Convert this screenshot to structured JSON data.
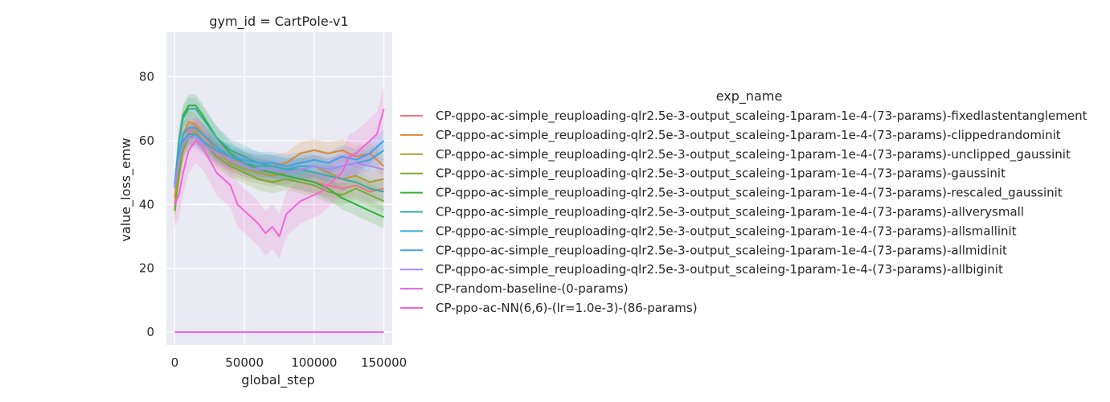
{
  "chart_data": {
    "type": "line",
    "title": "gym_id = CartPole-v1",
    "xlabel": "global_step",
    "ylabel": "value_loss_emw",
    "xlim": [
      -6000,
      156000
    ],
    "ylim": [
      -4,
      94
    ],
    "xticks": [
      0,
      50000,
      100000,
      150000
    ],
    "yticks": [
      0,
      20,
      40,
      60,
      80
    ],
    "grid": true,
    "background": "#eaeaf2",
    "legend_title": "exp_name",
    "legend_position": "right",
    "series": [
      {
        "name": "CP-qppo-ac-simple_reuploading-qlr2.5e-3-output_scaleing-1param-1e-4-(73-params)-fixedlastentanglement",
        "color": "#f77189",
        "x": [
          0,
          3000,
          6000,
          10000,
          15000,
          20000,
          30000,
          40000,
          50000,
          60000,
          70000,
          80000,
          90000,
          100000,
          110000,
          120000,
          130000,
          140000,
          150000
        ],
        "y": [
          40,
          50,
          58,
          63,
          64,
          62,
          57,
          54,
          52,
          51,
          50,
          49,
          48,
          47,
          46,
          45,
          46,
          44,
          45
        ]
      },
      {
        "name": "CP-qppo-ac-simple_reuploading-qlr2.5e-3-output_scaleing-1param-1e-4-(73-params)-clippedrandominit",
        "color": "#dc8932",
        "x": [
          0,
          3000,
          6000,
          10000,
          15000,
          20000,
          30000,
          40000,
          50000,
          60000,
          70000,
          80000,
          90000,
          100000,
          110000,
          120000,
          130000,
          140000,
          150000
        ],
        "y": [
          42,
          55,
          62,
          66,
          65,
          62,
          57,
          54,
          53,
          52,
          52,
          53,
          56,
          57,
          56,
          57,
          55,
          56,
          52
        ]
      },
      {
        "name": "CP-qppo-ac-simple_reuploading-qlr2.5e-3-output_scaleing-1param-1e-4-(73-params)-unclipped_gaussinit",
        "color": "#ae9d31",
        "x": [
          0,
          3000,
          6000,
          10000,
          15000,
          20000,
          30000,
          40000,
          50000,
          60000,
          70000,
          80000,
          90000,
          100000,
          110000,
          120000,
          130000,
          140000,
          150000
        ],
        "y": [
          38,
          50,
          58,
          62,
          63,
          60,
          56,
          53,
          51,
          50,
          49,
          50,
          51,
          52,
          50,
          48,
          49,
          47,
          48
        ]
      },
      {
        "name": "CP-qppo-ac-simple_reuploading-qlr2.5e-3-output_scaleing-1param-1e-4-(73-params)-gaussinit",
        "color": "#77ab31",
        "x": [
          0,
          3000,
          6000,
          10000,
          15000,
          20000,
          30000,
          40000,
          50000,
          60000,
          70000,
          80000,
          90000,
          100000,
          110000,
          120000,
          130000,
          140000,
          150000
        ],
        "y": [
          38,
          49,
          57,
          61,
          62,
          60,
          55,
          52,
          50,
          48,
          47,
          48,
          47,
          46,
          44,
          43,
          45,
          43,
          41
        ]
      },
      {
        "name": "CP-qppo-ac-simple_reuploading-qlr2.5e-3-output_scaleing-1param-1e-4-(73-params)-rescaled_gaussinit",
        "color": "#33b039",
        "x": [
          0,
          3000,
          6000,
          10000,
          15000,
          20000,
          30000,
          40000,
          50000,
          60000,
          70000,
          80000,
          90000,
          100000,
          110000,
          120000,
          130000,
          140000,
          150000
        ],
        "y": [
          45,
          60,
          68,
          71,
          71,
          68,
          61,
          56,
          53,
          51,
          50,
          49,
          48,
          47,
          45,
          42,
          40,
          38,
          36
        ]
      },
      {
        "name": "CP-qppo-ac-simple_reuploading-qlr2.5e-3-output_scaleing-1param-1e-4-(73-params)-allverysmall",
        "color": "#36ada4",
        "x": [
          0,
          3000,
          6000,
          10000,
          15000,
          20000,
          30000,
          40000,
          50000,
          60000,
          70000,
          80000,
          90000,
          100000,
          110000,
          120000,
          130000,
          140000,
          150000
        ],
        "y": [
          46,
          60,
          67,
          70,
          70,
          67,
          61,
          57,
          55,
          53,
          52,
          51,
          51,
          50,
          49,
          48,
          47,
          45,
          44
        ]
      },
      {
        "name": "CP-qppo-ac-simple_reuploading-qlr2.5e-3-output_scaleing-1param-1e-4-(73-params)-allsmallinit",
        "color": "#39a7d0",
        "x": [
          0,
          3000,
          6000,
          10000,
          15000,
          20000,
          30000,
          40000,
          50000,
          60000,
          70000,
          80000,
          90000,
          100000,
          110000,
          120000,
          130000,
          140000,
          150000
        ],
        "y": [
          46,
          56,
          62,
          64,
          64,
          62,
          58,
          55,
          53,
          52,
          52,
          51,
          52,
          52,
          51,
          52,
          53,
          54,
          57
        ]
      },
      {
        "name": "CP-qppo-ac-simple_reuploading-qlr2.5e-3-output_scaleing-1param-1e-4-(73-params)-allmidinit",
        "color": "#3ba3ec",
        "x": [
          0,
          3000,
          6000,
          10000,
          15000,
          20000,
          30000,
          40000,
          50000,
          60000,
          70000,
          80000,
          90000,
          100000,
          110000,
          120000,
          130000,
          140000,
          150000
        ],
        "y": [
          47,
          55,
          60,
          62,
          62,
          60,
          57,
          55,
          54,
          53,
          53,
          52,
          53,
          54,
          53,
          55,
          54,
          56,
          60
        ]
      },
      {
        "name": "CP-qppo-ac-simple_reuploading-qlr2.5e-3-output_scaleing-1param-1e-4-(73-params)-allbiginit",
        "color": "#a48cf4",
        "x": [
          0,
          3000,
          6000,
          10000,
          15000,
          20000,
          30000,
          40000,
          50000,
          60000,
          70000,
          80000,
          90000,
          100000,
          110000,
          120000,
          130000,
          140000,
          150000
        ],
        "y": [
          45,
          54,
          59,
          61,
          61,
          59,
          56,
          54,
          52,
          51,
          51,
          50,
          51,
          52,
          51,
          52,
          53,
          52,
          51
        ]
      },
      {
        "name": "CP-random-baseline-(0-params)",
        "color": "#e865eb",
        "x": [
          0,
          150000
        ],
        "y": [
          0,
          0
        ]
      },
      {
        "name": "CP-ppo-ac-NN(6,6)-(lr=1.0e-3)-(86-params)",
        "color": "#f564d4",
        "x": [
          0,
          3000,
          6000,
          10000,
          15000,
          20000,
          25000,
          30000,
          35000,
          40000,
          45000,
          50000,
          55000,
          60000,
          65000,
          70000,
          75000,
          80000,
          85000,
          90000,
          95000,
          100000,
          105000,
          110000,
          115000,
          120000,
          125000,
          130000,
          135000,
          140000,
          145000,
          150000
        ],
        "y": [
          40,
          43,
          50,
          57,
          60,
          58,
          54,
          50,
          48,
          46,
          40,
          38,
          36,
          34,
          31,
          33,
          30,
          37,
          39,
          41,
          42,
          43,
          44,
          46,
          48,
          50,
          55,
          56,
          58,
          60,
          62,
          70
        ]
      }
    ]
  }
}
